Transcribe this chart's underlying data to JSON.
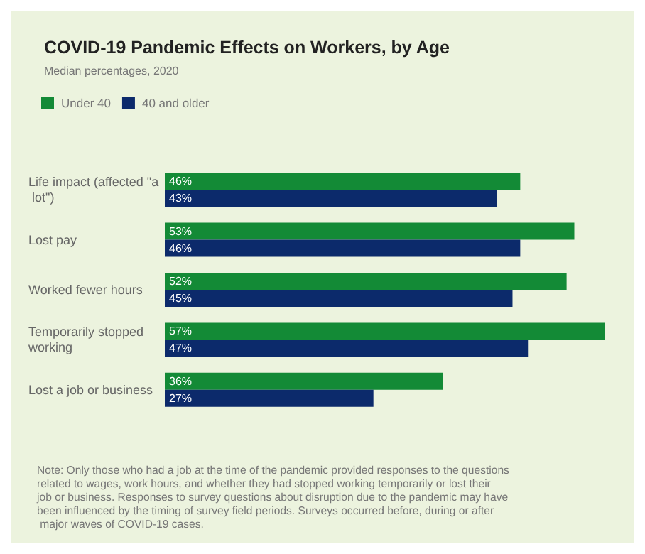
{
  "chart_data": {
    "type": "bar",
    "orientation": "horizontal",
    "title": "COVID-19 Pandemic Effects on Workers, by Age",
    "subtitle": "Median percentages, 2020",
    "categories": [
      "Life impact (affected \"a lot\")",
      "Lost pay",
      "Worked fewer hours",
      "Temporarily stopped working",
      "Lost a job or business"
    ],
    "series": [
      {
        "name": "Under 40",
        "color": "#138a36",
        "values": [
          46,
          53,
          52,
          57,
          36
        ],
        "value_labels": [
          "46%",
          "53%",
          "52%",
          "57%",
          "36%"
        ]
      },
      {
        "name": "40 and older",
        "color": "#0c2a6b",
        "values": [
          43,
          46,
          45,
          47,
          27
        ],
        "value_labels": [
          "43%",
          "46%",
          "45%",
          "47%",
          "27%"
        ]
      }
    ],
    "legend": "top left",
    "grid": false,
    "annotations": [
      "Note: Only those who had a job at the time of the pandemic provided responses to the questions related to wages, work hours, and whether they had stopped working temporarily or lost their job or business. Responses to survey questions about disruption due to the pandemic may have been influenced by the timing of survey field periods. Surveys occurred before, during or after major waves of COVID-19 cases."
    ]
  }
}
